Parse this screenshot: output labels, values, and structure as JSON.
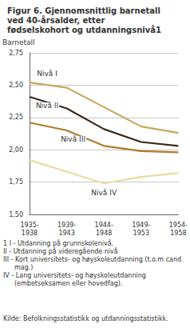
{
  "chart_data": {
    "type": "line",
    "title": "Figur 6. Gjennomsnittlig barnetall ved 40-årsalder, etter fødselskohort og utdanningsnivå1",
    "y_label": "Barnetall",
    "categories": [
      "1935-1938",
      "1939-1943",
      "1944-1948",
      "1949-1953",
      "1954-1958"
    ],
    "series": [
      {
        "name": "Nivå I",
        "color": "#c9a660",
        "values": [
          2.52,
          2.48,
          2.33,
          2.18,
          2.13
        ]
      },
      {
        "name": "Nivå II",
        "color": "#3b2a1c",
        "values": [
          2.41,
          2.32,
          2.16,
          2.06,
          2.03
        ]
      },
      {
        "name": "Nivå III",
        "color": "#b07a2a",
        "values": [
          2.21,
          2.15,
          2.03,
          1.99,
          1.98
        ]
      },
      {
        "name": "Nivå IV",
        "color": "#e6dea2",
        "values": [
          1.92,
          1.83,
          1.74,
          1.79,
          1.82
        ]
      }
    ],
    "ylim": [
      1.5,
      2.75
    ],
    "yticks": [
      {
        "value": 1.5,
        "label": "1,50"
      },
      {
        "value": 1.75,
        "label": "1,75"
      },
      {
        "value": 2.0,
        "label": "2,00"
      },
      {
        "value": 2.25,
        "label": "2,25"
      },
      {
        "value": 2.5,
        "label": "2,50"
      },
      {
        "value": 2.75,
        "label": "2,75"
      }
    ],
    "grid": true,
    "annotations": [
      "1 I - Utdanning på grunnskolenivå.",
      "II - Utdanning på videregående nivå",
      "III - Kort universitets- og høyskoleutdanning (t.o.m cand mag.)",
      "IV - Lang universitets- og høyskoleutdanning (embetseksamen eller hovedfag)."
    ],
    "source": "Kilde: Befolkningsstatistikk og utdanningsstatistikk."
  }
}
